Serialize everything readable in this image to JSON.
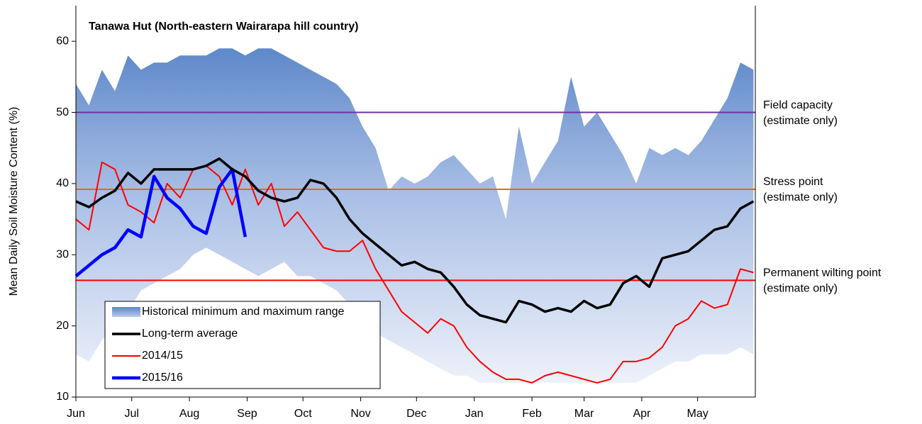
{
  "chart_data": {
    "type": "line",
    "title": "Tanawa Hut (North-eastern Wairarapa hill country)",
    "y_label": "Mean Daily Soil Moisture Content (%)",
    "x": [
      0,
      7,
      14,
      21,
      28,
      35,
      42,
      49,
      56,
      63,
      70,
      77,
      84,
      91,
      98,
      105,
      112,
      119,
      126,
      133,
      140,
      147,
      154,
      161,
      168,
      175,
      182,
      189,
      196,
      203,
      210,
      217,
      224,
      231,
      238,
      245,
      252,
      259,
      266,
      273,
      280,
      287,
      294,
      301,
      308,
      315,
      322,
      329,
      336,
      343,
      350,
      357,
      364
    ],
    "xlim": [
      0,
      365
    ],
    "xticks": [
      {
        "value": 0,
        "label": "Jun"
      },
      {
        "value": 30,
        "label": "Jul"
      },
      {
        "value": 61,
        "label": "Aug"
      },
      {
        "value": 92,
        "label": "Sep"
      },
      {
        "value": 122,
        "label": "Oct"
      },
      {
        "value": 153,
        "label": "Nov"
      },
      {
        "value": 183,
        "label": "Dec"
      },
      {
        "value": 214,
        "label": "Jan"
      },
      {
        "value": 245,
        "label": "Feb"
      },
      {
        "value": 273,
        "label": "Mar"
      },
      {
        "value": 304,
        "label": "Apr"
      },
      {
        "value": 334,
        "label": "May"
      }
    ],
    "ylim": [
      10,
      65
    ],
    "yticks": [
      10,
      20,
      30,
      40,
      50,
      60
    ],
    "legend": "lower-left",
    "series": [
      {
        "name": "Historical minimum and maximum range",
        "color": "#5b86c8",
        "max": [
          54,
          51,
          56,
          53,
          58,
          56,
          57,
          57,
          58,
          58,
          58,
          59,
          59,
          58,
          59,
          59,
          58,
          57,
          56,
          55,
          54,
          52,
          48,
          45,
          39,
          41,
          40,
          41,
          43,
          44,
          42,
          40,
          41,
          35,
          48,
          40,
          43,
          46,
          55,
          48,
          50,
          47,
          44,
          40,
          45,
          44,
          45,
          44,
          46,
          49,
          52,
          57,
          56
        ],
        "min": [
          16,
          15,
          18,
          20,
          22,
          25,
          26,
          27,
          28,
          30,
          31,
          30,
          29,
          28,
          27,
          28,
          29,
          27,
          27,
          26,
          25,
          23,
          21,
          19,
          18,
          17,
          16,
          15,
          14,
          13,
          13,
          12,
          12,
          12,
          12,
          12,
          12,
          12,
          12,
          12,
          12,
          12,
          12,
          12,
          13,
          14,
          15,
          15,
          16,
          16,
          16,
          17,
          16
        ]
      },
      {
        "name": "Long-term average",
        "color": "#000000",
        "values": [
          37.5,
          36.7,
          38,
          39,
          41.5,
          40,
          42,
          42,
          42,
          42,
          42.5,
          43.5,
          42,
          41,
          39,
          38,
          37.5,
          38,
          40.5,
          40,
          38,
          35,
          33,
          31.5,
          30,
          28.5,
          29,
          28,
          27.5,
          25.5,
          23,
          21.5,
          21,
          20.5,
          23.5,
          23,
          22,
          22.5,
          22,
          23.5,
          22.5,
          23,
          26,
          27,
          25.5,
          29.5,
          30,
          30.5,
          32,
          33.5,
          34,
          36.5,
          37.5
        ]
      },
      {
        "name": "2014/15",
        "color": "#ff0000",
        "values": [
          35,
          33.5,
          43,
          42,
          37,
          36,
          34.5,
          40,
          38,
          42,
          42.5,
          41,
          37,
          42,
          37,
          40,
          34,
          36,
          33.5,
          31,
          30.5,
          30.5,
          32,
          28,
          25,
          22,
          20.5,
          19,
          21,
          20,
          17,
          15,
          13.5,
          12.5,
          12.5,
          12,
          13,
          13.5,
          13,
          12.5,
          12,
          12.5,
          15,
          15,
          15.5,
          17,
          20,
          21,
          23.5,
          22.5,
          23,
          28,
          27.5
        ]
      },
      {
        "name": "2015/16",
        "color": "#0000ff",
        "values": [
          27,
          28.5,
          30,
          31,
          33.5,
          32.5,
          41,
          38,
          36.5,
          34,
          33,
          39.5,
          42,
          32.5,
          null,
          null,
          null,
          null,
          null,
          null,
          null,
          null,
          null,
          null,
          null,
          null,
          null,
          null,
          null,
          null,
          null,
          null,
          null,
          null,
          null,
          null,
          null,
          null,
          null,
          null,
          null,
          null,
          null,
          null,
          null,
          null,
          null,
          null,
          null,
          null,
          null,
          null,
          null
        ]
      }
    ],
    "reference_lines": [
      {
        "value": 50,
        "color": "#7030a0",
        "label": [
          "Field capacity",
          "(estimate only)"
        ]
      },
      {
        "value": 39.2,
        "color": "#e46c0a",
        "label": [
          "Stress point",
          "(estimate only)"
        ]
      },
      {
        "value": 26.4,
        "color": "#ff0000",
        "label": [
          "Permanent wilting point",
          "(estimate only)"
        ]
      }
    ]
  }
}
